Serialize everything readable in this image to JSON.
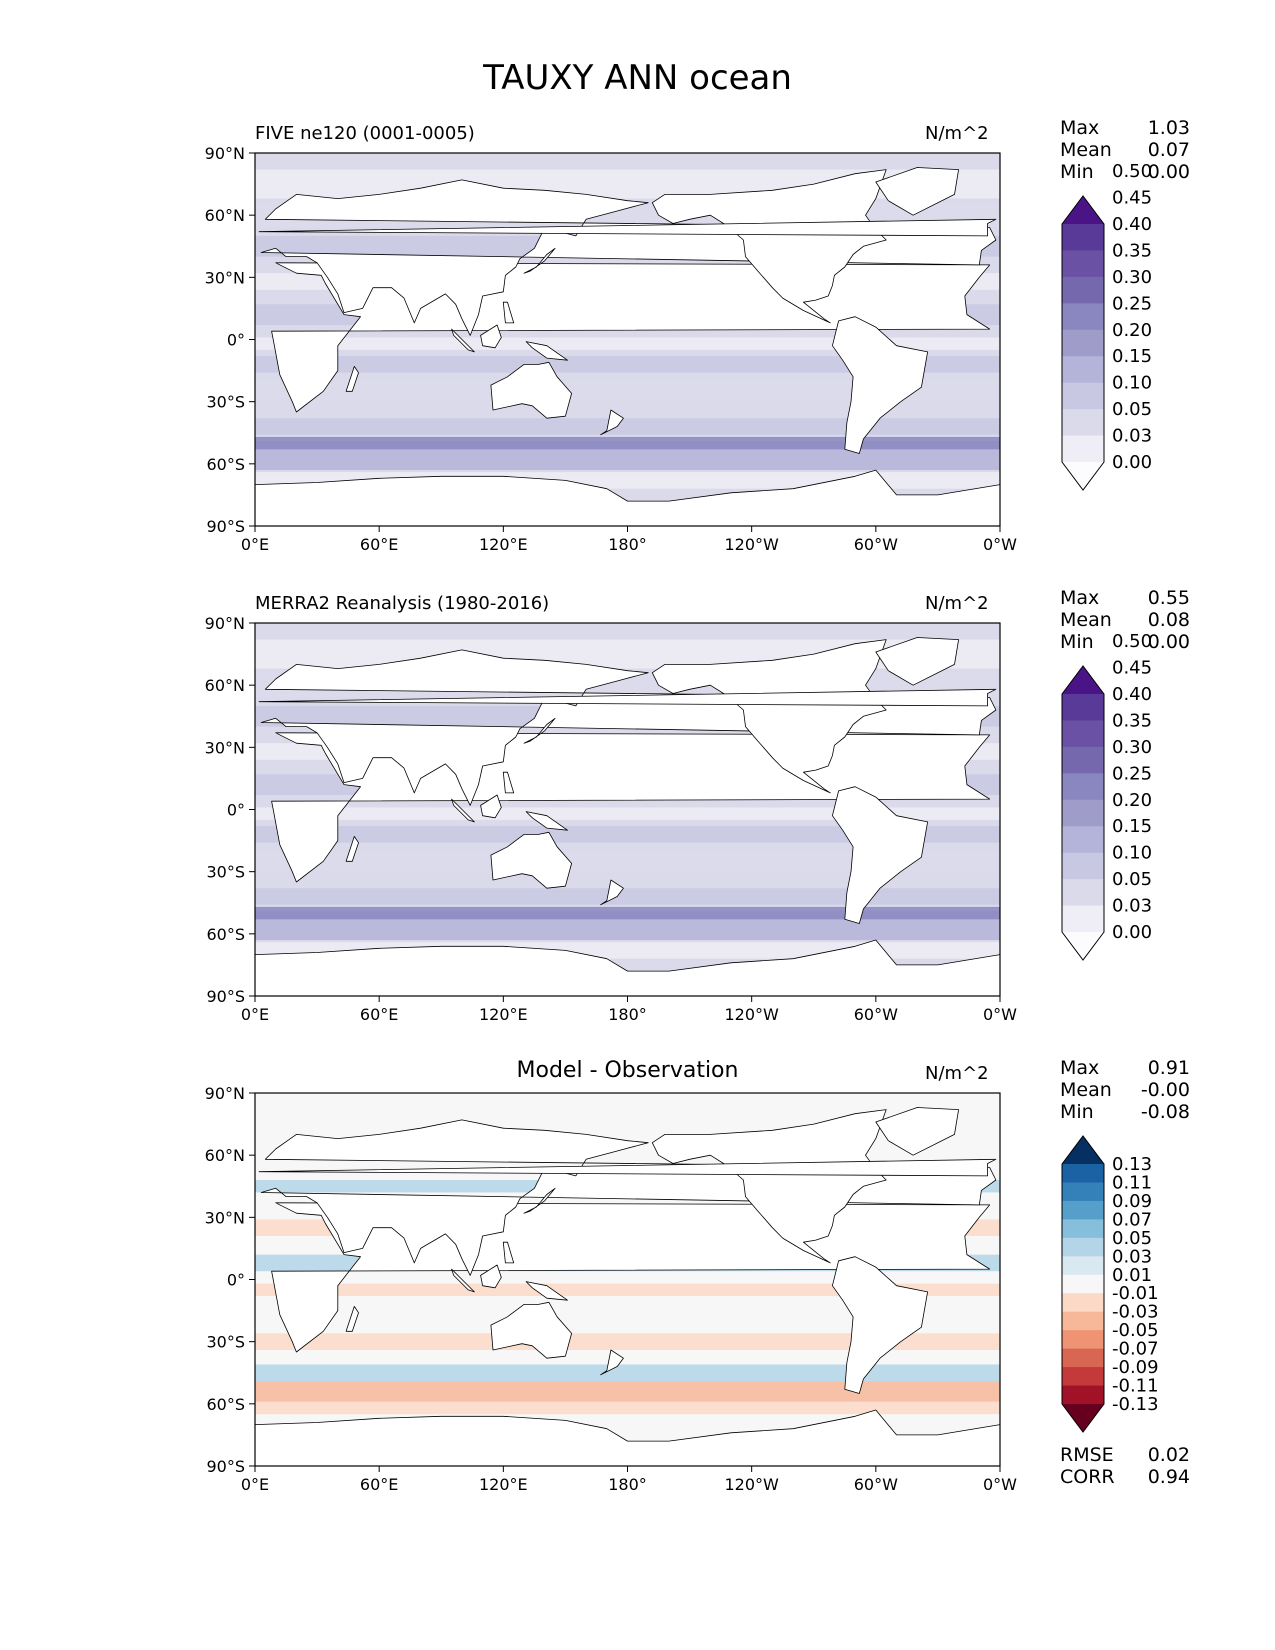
{
  "figure_title": "TAUXY ANN ocean",
  "colors": {
    "purples": [
      "#fcfbfd",
      "#efedf5",
      "#dadaeb",
      "#c8c8e3",
      "#b4b3d9",
      "#9f9cc9",
      "#8a86bf",
      "#7668ad",
      "#6a51a3",
      "#5a3a98",
      "#4a1486"
    ],
    "diverging": [
      "#67001f",
      "#a11228",
      "#c43a3b",
      "#d96553",
      "#ee9374",
      "#f7b799",
      "#fcd9c6",
      "#f7f7f7",
      "#d9e8f1",
      "#b3d5e7",
      "#86bfdb",
      "#569fcb",
      "#3480b9",
      "#1b62a5",
      "#053061"
    ]
  },
  "chart_data": [
    {
      "type": "heatmap",
      "title": "FIVE ne120 (0001-0005)",
      "units": "N/m^2",
      "x_ticks": [
        "0°E",
        "60°E",
        "120°E",
        "180°",
        "120°W",
        "60°W",
        "0°W"
      ],
      "y_ticks": [
        "90°N",
        "60°N",
        "30°N",
        "0°",
        "30°S",
        "60°S",
        "90°S"
      ],
      "xlim": [
        0,
        360
      ],
      "ylim": [
        -90,
        90
      ],
      "stats": [
        {
          "label": "Max",
          "value": "1.03"
        },
        {
          "label": "Mean",
          "value": "0.07"
        },
        {
          "label": "Min",
          "value": "0.00"
        }
      ],
      "colorbar": {
        "levels": [
          "0.00",
          "0.03",
          "0.05",
          "0.10",
          "0.15",
          "0.20",
          "0.25",
          "0.30",
          "0.35",
          "0.40",
          "0.45",
          "0.50"
        ],
        "extend": "both"
      }
    },
    {
      "type": "heatmap",
      "title": "MERRA2 Reanalysis (1980-2016)",
      "units": "N/m^2",
      "x_ticks": [
        "0°E",
        "60°E",
        "120°E",
        "180°",
        "120°W",
        "60°W",
        "0°W"
      ],
      "y_ticks": [
        "90°N",
        "60°N",
        "30°N",
        "0°",
        "30°S",
        "60°S",
        "90°S"
      ],
      "xlim": [
        0,
        360
      ],
      "ylim": [
        -90,
        90
      ],
      "stats": [
        {
          "label": "Max",
          "value": "0.55"
        },
        {
          "label": "Mean",
          "value": "0.08"
        },
        {
          "label": "Min",
          "value": "0.00"
        }
      ],
      "colorbar": {
        "levels": [
          "0.00",
          "0.03",
          "0.05",
          "0.10",
          "0.15",
          "0.20",
          "0.25",
          "0.30",
          "0.35",
          "0.40",
          "0.45",
          "0.50"
        ],
        "extend": "both"
      }
    },
    {
      "type": "heatmap",
      "title": "Model - Observation",
      "units": "N/m^2",
      "x_ticks": [
        "0°E",
        "60°E",
        "120°E",
        "180°",
        "120°W",
        "60°W",
        "0°W"
      ],
      "y_ticks": [
        "90°N",
        "60°N",
        "30°N",
        "0°",
        "30°S",
        "60°S",
        "90°S"
      ],
      "xlim": [
        0,
        360
      ],
      "ylim": [
        -90,
        90
      ],
      "stats": [
        {
          "label": "Max",
          "value": "0.91"
        },
        {
          "label": "Mean",
          "value": "-0.00"
        },
        {
          "label": "Min",
          "value": "-0.08"
        }
      ],
      "extra_stats": [
        {
          "label": "RMSE",
          "value": "0.02"
        },
        {
          "label": "CORR",
          "value": "0.94"
        }
      ],
      "colorbar": {
        "levels": [
          "-0.13",
          "-0.11",
          "-0.09",
          "-0.07",
          "-0.05",
          "-0.03",
          "-0.01",
          "0.01",
          "0.03",
          "0.05",
          "0.07",
          "0.09",
          "0.11",
          "0.13"
        ],
        "extend": "both"
      }
    }
  ]
}
